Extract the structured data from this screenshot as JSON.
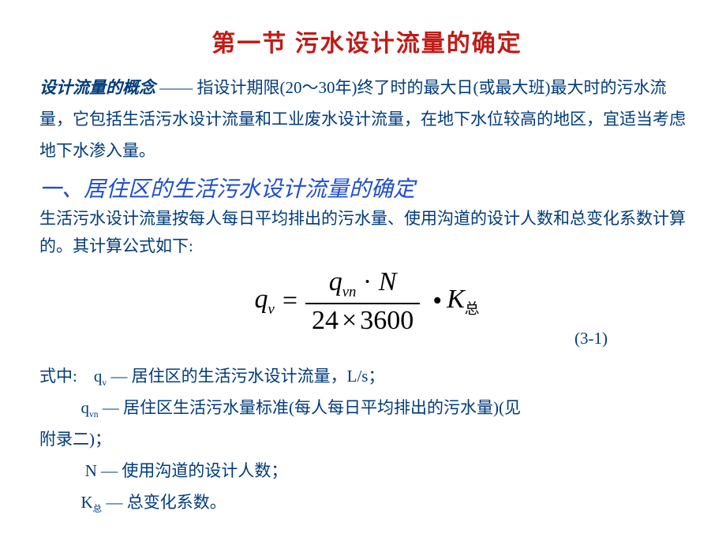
{
  "colors": {
    "title": "#c11b17",
    "concept_text": "#003b7a",
    "section_head": "#1f4fd0",
    "section_desc": "#003b7a",
    "formula": "#000000",
    "eqnum": "#003b7a",
    "where": "#003b7a"
  },
  "fonts": {
    "title_size": 30,
    "body_size": 21,
    "section_head_size": 28,
    "formula_size": 34,
    "where_size": 21
  },
  "title": "第一节   污水设计流量的确定",
  "concept": {
    "label": "设计流量的概念",
    "dash": " —— ",
    "text": "指设计期限(20～30年)终了时的最大日(或最大班)最大时的污水流量，它包括生活污水设计流量和工业废水设计流量，在地下水位较高的地区，宜适当考虑地下水渗入量。"
  },
  "section_head": "一、居住区的生活污水设计流量的确定",
  "section_desc": "生活污水设计流量按每人每日平均排出的污水量、使用沟道的设计人数和总变化系数计算的。其计算公式如下:",
  "formula": {
    "lhs_base": "q",
    "lhs_sub": "v",
    "eq": "=",
    "num_q": "q",
    "num_sub": "vn",
    "num_dot": "·",
    "num_N": "N",
    "den_a": "24",
    "den_times": "×",
    "den_b": "3600",
    "bullet": "•",
    "K": "K",
    "K_sub": "总",
    "eqnum": "(3-1)"
  },
  "where": {
    "intro": "式中:",
    "lines": [
      {
        "sym": "q",
        "sub": "v",
        "dash": " — ",
        "text": "居住区的生活污水设计流量，L/s；"
      },
      {
        "sym": "q",
        "sub": "vn",
        "dash": " — ",
        "text": "居住区生活污水量标准(每人每日平均排出的污水量)(见"
      },
      {
        "cont": "附录二)；"
      },
      {
        "sym": "N",
        "sub": "",
        "dash": " — ",
        "text": "使用沟道的设计人数；"
      },
      {
        "sym": "K",
        "subcn": "总",
        "dash": " — ",
        "text": "总变化系数。"
      }
    ]
  }
}
